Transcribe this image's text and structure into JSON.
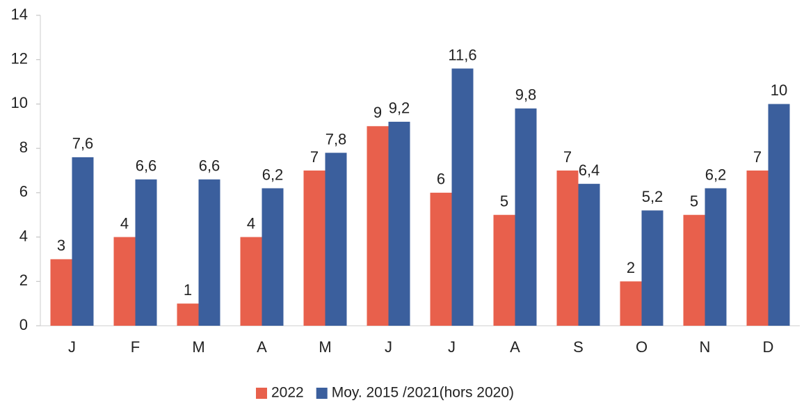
{
  "chart_data": {
    "type": "bar",
    "categories": [
      "J",
      "F",
      "M",
      "A",
      "M",
      "J",
      "J",
      "A",
      "S",
      "O",
      "N",
      "D"
    ],
    "series": [
      {
        "name": "2022",
        "color": "#e8604c",
        "values": [
          3,
          4,
          1,
          4,
          7,
          9,
          6,
          5,
          7,
          2,
          5,
          7
        ]
      },
      {
        "name": "Moy. 2015 /2021(hors 2020)",
        "color": "#3b5f9d",
        "values": [
          7.6,
          6.6,
          6.6,
          6.2,
          7.8,
          9.2,
          11.6,
          9.8,
          6.4,
          5.2,
          6.2,
          10
        ],
        "value_labels": [
          "7,6",
          "6,6",
          "6,6",
          "6,2",
          "7,8",
          "9,2",
          "11,6",
          "9,8",
          "6,4",
          "5,2",
          "6,2",
          "10"
        ]
      }
    ],
    "ylim": [
      0,
      14
    ],
    "yticks": [
      0,
      2,
      4,
      6,
      8,
      10,
      12,
      14
    ],
    "grid": false,
    "legend": "bottom"
  }
}
